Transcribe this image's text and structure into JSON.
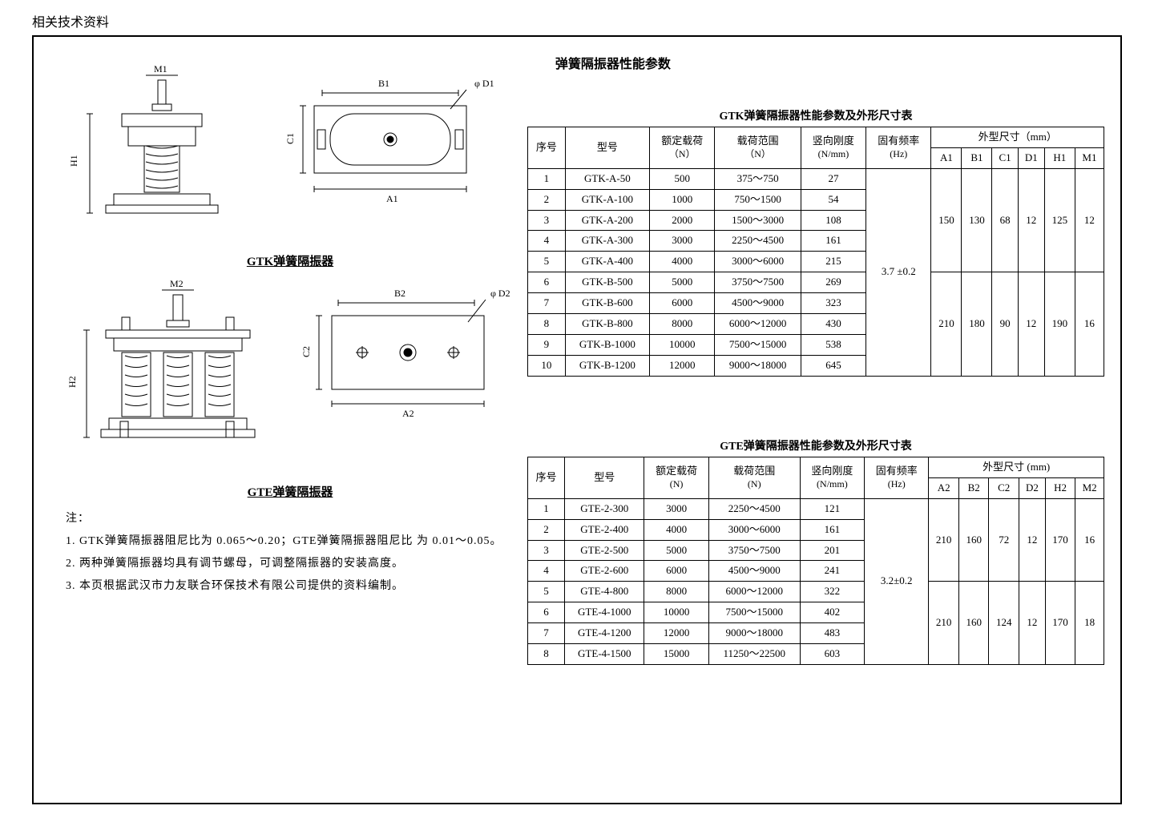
{
  "pageHeading": "相关技术资料",
  "mainTitle": "弹簧隔振器性能参数",
  "diagrams": {
    "gtk": {
      "caption": "GTK弹簧隔振器",
      "labels": {
        "H": "H1",
        "M": "M1",
        "A": "A1",
        "B": "B1",
        "C": "C1",
        "D": "φ D1"
      }
    },
    "gte": {
      "caption": "GTE弹簧隔振器",
      "labels": {
        "H": "H2",
        "M": "M2",
        "A": "A2",
        "B": "B2",
        "C": "C2",
        "D": "φ D2"
      }
    }
  },
  "notes": {
    "header": "注：",
    "items": [
      "1. GTK弹簧隔振器阻尼比为 0.065～0.20；GTE弹簧隔振器阻尼比 为 0.01～0.05。",
      "2. 两种弹簧隔振器均具有调节螺母，可调整隔振器的安装高度。",
      "3. 本页根据武汉市力友联合环保技术有限公司提供的资料编制。"
    ]
  },
  "gtkTable": {
    "title": "GTK弹簧隔振器性能参数及外形尺寸表",
    "headers": {
      "seq": "序号",
      "model": "型号",
      "rated": "额定载荷",
      "ratedUnit": "（N）",
      "range": "载荷范围",
      "rangeUnit": "（N）",
      "stiff": "竖向刚度",
      "stiffUnit": "(N/mm)",
      "freq": "固有频率",
      "freqUnit": "(Hz)",
      "dim": "外型尺寸（mm）",
      "A": "A1",
      "B": "B1",
      "C": "C1",
      "D": "D1",
      "H": "H1",
      "M": "M1"
    },
    "freqMerged": "3.7 ±0.2",
    "groupA": {
      "A": "150",
      "B": "130",
      "C": "68",
      "D": "12",
      "H": "125",
      "M": "12"
    },
    "groupB": {
      "A": "210",
      "B": "180",
      "C": "90",
      "D": "12",
      "H": "190",
      "M": "16"
    },
    "rows": [
      {
        "n": "1",
        "model": "GTK-A-50",
        "rated": "500",
        "range": "375～750",
        "stiff": "27"
      },
      {
        "n": "2",
        "model": "GTK-A-100",
        "rated": "1000",
        "range": "750～1500",
        "stiff": "54"
      },
      {
        "n": "3",
        "model": "GTK-A-200",
        "rated": "2000",
        "range": "1500～3000",
        "stiff": "108"
      },
      {
        "n": "4",
        "model": "GTK-A-300",
        "rated": "3000",
        "range": "2250～4500",
        "stiff": "161"
      },
      {
        "n": "5",
        "model": "GTK-A-400",
        "rated": "4000",
        "range": "3000～6000",
        "stiff": "215"
      },
      {
        "n": "6",
        "model": "GTK-B-500",
        "rated": "5000",
        "range": "3750～7500",
        "stiff": "269"
      },
      {
        "n": "7",
        "model": "GTK-B-600",
        "rated": "6000",
        "range": "4500～9000",
        "stiff": "323"
      },
      {
        "n": "8",
        "model": "GTK-B-800",
        "rated": "8000",
        "range": "6000～12000",
        "stiff": "430"
      },
      {
        "n": "9",
        "model": "GTK-B-1000",
        "rated": "10000",
        "range": "7500～15000",
        "stiff": "538"
      },
      {
        "n": "10",
        "model": "GTK-B-1200",
        "rated": "12000",
        "range": "9000～18000",
        "stiff": "645"
      }
    ]
  },
  "gteTable": {
    "title": "GTE弹簧隔振器性能参数及外形尺寸表",
    "headers": {
      "seq": "序号",
      "model": "型号",
      "rated": "额定载荷",
      "ratedUnit": "(N)",
      "range": "载荷范围",
      "rangeUnit": "(N)",
      "stiff": "竖向刚度",
      "stiffUnit": "(N/mm)",
      "freq": "固有频率",
      "freqUnit": "(Hz)",
      "dim": "外型尺寸 (mm)",
      "A": "A2",
      "B": "B2",
      "C": "C2",
      "D": "D2",
      "H": "H2",
      "M": "M2"
    },
    "freqMerged": "3.2±0.2",
    "groupA": {
      "A": "210",
      "B": "160",
      "C": "72",
      "D": "12",
      "H": "170",
      "M": "16"
    },
    "groupB": {
      "A": "210",
      "B": "160",
      "C": "124",
      "D": "12",
      "H": "170",
      "M": "18"
    },
    "rows": [
      {
        "n": "1",
        "model": "GTE-2-300",
        "rated": "3000",
        "range": "2250～4500",
        "stiff": "121"
      },
      {
        "n": "2",
        "model": "GTE-2-400",
        "rated": "4000",
        "range": "3000～6000",
        "stiff": "161"
      },
      {
        "n": "3",
        "model": "GTE-2-500",
        "rated": "5000",
        "range": "3750～7500",
        "stiff": "201"
      },
      {
        "n": "4",
        "model": "GTE-2-600",
        "rated": "6000",
        "range": "4500～9000",
        "stiff": "241"
      },
      {
        "n": "5",
        "model": "GTE-4-800",
        "rated": "8000",
        "range": "6000～12000",
        "stiff": "322"
      },
      {
        "n": "6",
        "model": "GTE-4-1000",
        "rated": "10000",
        "range": "7500～15000",
        "stiff": "402"
      },
      {
        "n": "7",
        "model": "GTE-4-1200",
        "rated": "12000",
        "range": "9000～18000",
        "stiff": "483"
      },
      {
        "n": "8",
        "model": "GTE-4-1500",
        "rated": "15000",
        "range": "11250～22500",
        "stiff": "603"
      }
    ]
  },
  "style": {
    "borderColor": "#000000",
    "background": "#ffffff",
    "fontSizeBody": 14,
    "fontSizeTable": 13
  }
}
